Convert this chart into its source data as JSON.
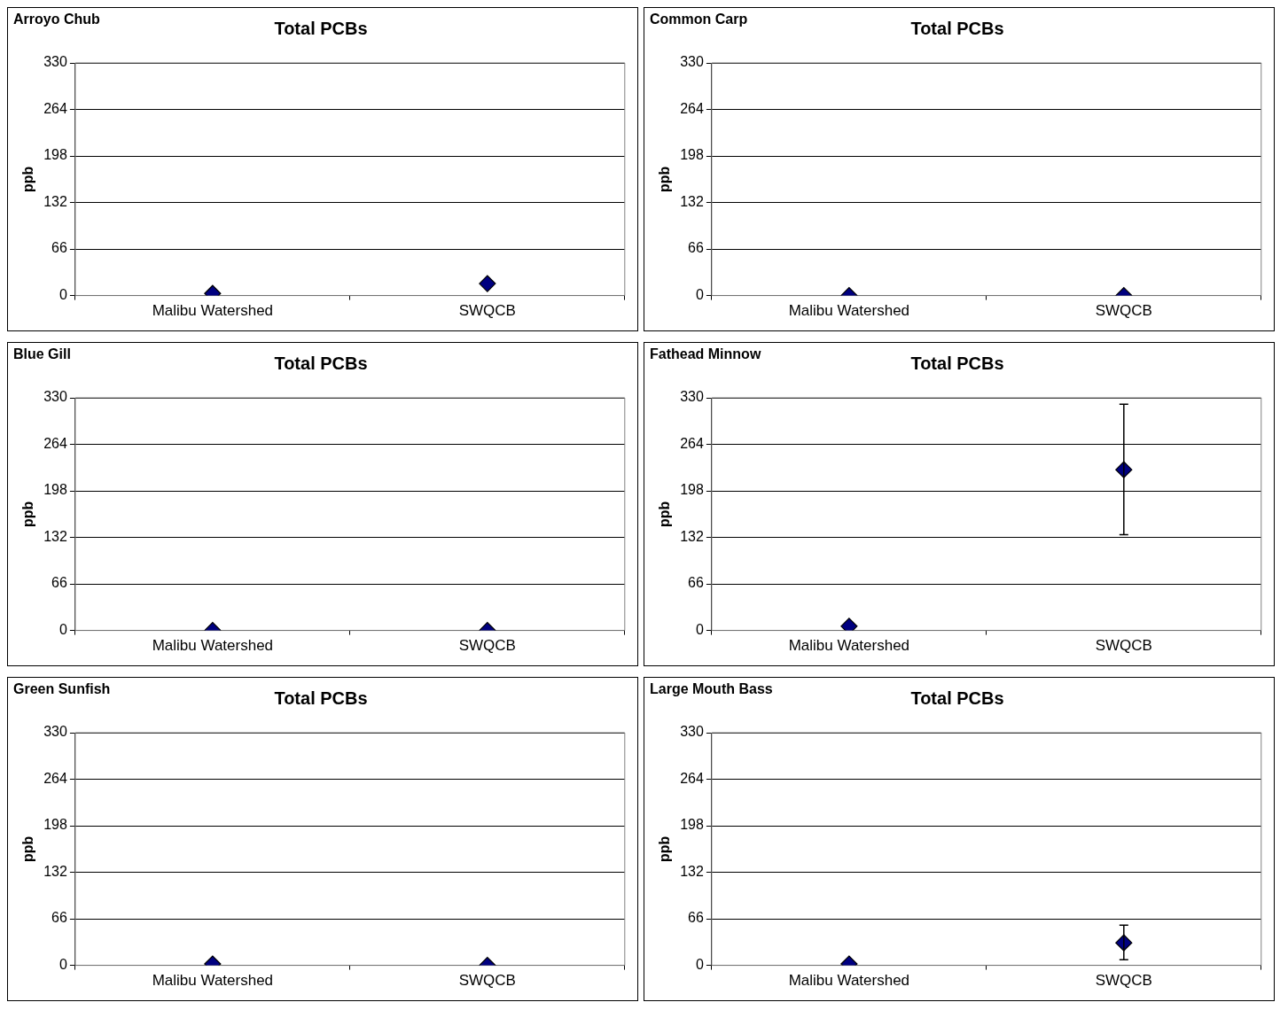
{
  "chart_data": [
    {
      "type": "scatter",
      "title": "Total PCBs",
      "annotations": [
        "Arroyo Chub"
      ],
      "ylabel": "ppb",
      "categories": [
        "Malibu Watershed",
        "SWQCB"
      ],
      "series": [
        {
          "color": "#000080",
          "values": [
            3,
            17
          ],
          "errors": [
            null,
            null
          ]
        }
      ],
      "ylim": [
        0,
        330
      ],
      "yticks": [
        0,
        66,
        132,
        198,
        264,
        330
      ],
      "grid": "y",
      "marker": "diamond"
    },
    {
      "type": "scatter",
      "title": "Total PCBs",
      "annotations": [
        "Common Carp"
      ],
      "ylabel": "ppb",
      "categories": [
        "Malibu Watershed",
        "SWQCB"
      ],
      "series": [
        {
          "color": "#000080",
          "values": [
            0,
            0
          ],
          "errors": [
            null,
            null
          ]
        }
      ],
      "ylim": [
        0,
        330
      ],
      "yticks": [
        0,
        66,
        132,
        198,
        264,
        330
      ],
      "grid": "y",
      "marker": "diamond"
    },
    {
      "type": "scatter",
      "title": "Total PCBs",
      "annotations": [
        "Blue Gill"
      ],
      "ylabel": "ppb",
      "categories": [
        "Malibu Watershed",
        "SWQCB"
      ],
      "series": [
        {
          "color": "#000080",
          "values": [
            0,
            0
          ],
          "errors": [
            null,
            null
          ]
        }
      ],
      "ylim": [
        0,
        330
      ],
      "yticks": [
        0,
        66,
        132,
        198,
        264,
        330
      ],
      "grid": "y",
      "marker": "diamond"
    },
    {
      "type": "scatter",
      "title": "Total PCBs",
      "annotations": [
        "Fathead Minnow"
      ],
      "ylabel": "ppb",
      "categories": [
        "Malibu Watershed",
        "SWQCB"
      ],
      "series": [
        {
          "color": "#000080",
          "values": [
            6,
            228
          ],
          "errors": [
            null,
            [
              136,
              321
            ]
          ]
        }
      ],
      "ylim": [
        0,
        330
      ],
      "yticks": [
        0,
        66,
        132,
        198,
        264,
        330
      ],
      "grid": "y",
      "marker": "diamond"
    },
    {
      "type": "scatter",
      "title": "Total PCBs",
      "annotations": [
        "Green Sunfish"
      ],
      "ylabel": "ppb",
      "categories": [
        "Malibu Watershed",
        "SWQCB"
      ],
      "series": [
        {
          "color": "#000080",
          "values": [
            2,
            0
          ],
          "errors": [
            null,
            null
          ]
        }
      ],
      "ylim": [
        0,
        330
      ],
      "yticks": [
        0,
        66,
        132,
        198,
        264,
        330
      ],
      "grid": "y",
      "marker": "diamond"
    },
    {
      "type": "scatter",
      "title": "Total PCBs",
      "annotations": [
        "Large Mouth Bass"
      ],
      "ylabel": "ppb",
      "categories": [
        "Malibu Watershed",
        "SWQCB"
      ],
      "series": [
        {
          "color": "#000080",
          "values": [
            2,
            32
          ],
          "errors": [
            null,
            [
              8,
              57
            ]
          ]
        }
      ],
      "ylim": [
        0,
        330
      ],
      "yticks": [
        0,
        66,
        132,
        198,
        264,
        330
      ],
      "grid": "y",
      "marker": "diamond"
    }
  ]
}
